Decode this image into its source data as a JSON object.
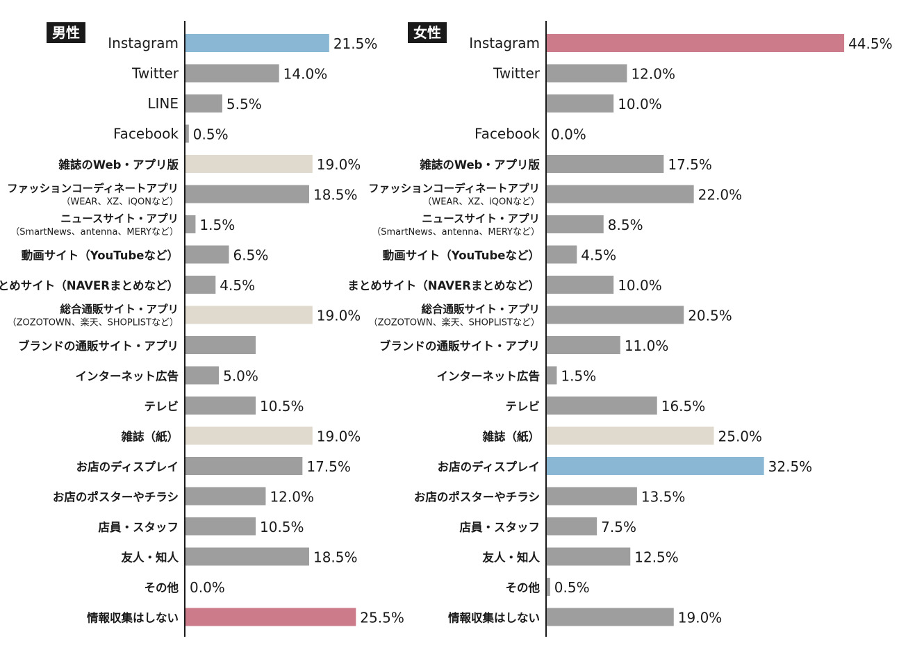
{
  "chart_data": [
    {
      "type": "bar",
      "orientation": "horizontal",
      "title": "男性",
      "categories": [
        {
          "line1": "Instagram",
          "line2": ""
        },
        {
          "line1": "Twitter",
          "line2": ""
        },
        {
          "line1": "LINE",
          "line2": ""
        },
        {
          "line1": "Facebook",
          "line2": ""
        },
        {
          "line1": "雑誌のWeb・アプリ版",
          "line2": ""
        },
        {
          "line1": "ファッションコーディネートアプリ",
          "line2": "（WEAR、XZ、iQONなど）"
        },
        {
          "line1": "ニュースサイト・アプリ",
          "line2": "（SmartNews、antenna、MERYなど）"
        },
        {
          "line1": "動画サイト（YouTubeなど）",
          "line2": ""
        },
        {
          "line1": "まとめサイト（NAVERまとめなど）",
          "line2": ""
        },
        {
          "line1": "総合通販サイト・アプリ",
          "line2": "（ZOZOTOWN、楽天、SHOPLISTなど）"
        },
        {
          "line1": "ブランドの通販サイト・アプリ",
          "line2": ""
        },
        {
          "line1": "インターネット広告",
          "line2": ""
        },
        {
          "line1": "テレビ",
          "line2": ""
        },
        {
          "line1": "雑誌（紙）",
          "line2": ""
        },
        {
          "line1": "お店のディスプレイ",
          "line2": ""
        },
        {
          "line1": "お店のポスターやチラシ",
          "line2": ""
        },
        {
          "line1": "店員・スタッフ",
          "line2": ""
        },
        {
          "line1": "友人・知人",
          "line2": ""
        },
        {
          "line1": "その他",
          "line2": ""
        },
        {
          "line1": "情報収集はしない",
          "line2": ""
        }
      ],
      "values": [
        21.5,
        14.0,
        5.5,
        0.5,
        19.0,
        18.5,
        1.5,
        6.5,
        4.5,
        19.0,
        10.5,
        5.0,
        10.5,
        19.0,
        17.5,
        12.0,
        10.5,
        18.5,
        0.0,
        25.5
      ],
      "value_labels": [
        "21.5%",
        "14.0%",
        "5.5%",
        "0.5%",
        "19.0%",
        "18.5%",
        "1.5%",
        "6.5%",
        "4.5%",
        "19.0%",
        "",
        "5.0%",
        "10.5%",
        "19.0%",
        "17.5%",
        "12.0%",
        "10.5%",
        "18.5%",
        "0.0%",
        "25.5%"
      ],
      "bar_colors": [
        "#8ab8d4",
        "#9e9e9e",
        "#9e9e9e",
        "#9e9e9e",
        "#e0d9ce",
        "#9e9e9e",
        "#9e9e9e",
        "#9e9e9e",
        "#9e9e9e",
        "#e0d9ce",
        "#9e9e9e",
        "#9e9e9e",
        "#9e9e9e",
        "#e0d9ce",
        "#9e9e9e",
        "#9e9e9e",
        "#9e9e9e",
        "#9e9e9e",
        "#9e9e9e",
        "#cc7b8a"
      ],
      "xlim": [
        0,
        50
      ],
      "grid": false,
      "legend": "none"
    },
    {
      "type": "bar",
      "orientation": "horizontal",
      "title": "女性",
      "categories": [
        {
          "line1": "Instagram",
          "line2": ""
        },
        {
          "line1": "Twitter",
          "line2": ""
        },
        {
          "line1": "",
          "line2": ""
        },
        {
          "line1": "Facebook",
          "line2": ""
        },
        {
          "line1": "雑誌のWeb・アプリ版",
          "line2": ""
        },
        {
          "line1": "ファッションコーディネートアプリ",
          "line2": "（WEAR、XZ、iQONなど）"
        },
        {
          "line1": "ニュースサイト・アプリ",
          "line2": "（SmartNews、antenna、MERYなど）"
        },
        {
          "line1": "動画サイト（YouTubeなど）",
          "line2": ""
        },
        {
          "line1": "まとめサイト（NAVERまとめなど）",
          "line2": ""
        },
        {
          "line1": "総合通販サイト・アプリ",
          "line2": "（ZOZOTOWN、楽天、SHOPLISTなど）"
        },
        {
          "line1": "ブランドの通販サイト・アプリ",
          "line2": ""
        },
        {
          "line1": "インターネット広告",
          "line2": ""
        },
        {
          "line1": "テレビ",
          "line2": ""
        },
        {
          "line1": "雑誌（紙）",
          "line2": ""
        },
        {
          "line1": "お店のディスプレイ",
          "line2": ""
        },
        {
          "line1": "お店のポスターやチラシ",
          "line2": ""
        },
        {
          "line1": "店員・スタッフ",
          "line2": ""
        },
        {
          "line1": "友人・知人",
          "line2": ""
        },
        {
          "line1": "その他",
          "line2": ""
        },
        {
          "line1": "情報収集はしない",
          "line2": ""
        }
      ],
      "values": [
        44.5,
        12.0,
        10.0,
        0.0,
        17.5,
        22.0,
        8.5,
        4.5,
        10.0,
        20.5,
        11.0,
        1.5,
        16.5,
        25.0,
        32.5,
        13.5,
        7.5,
        12.5,
        0.5,
        19.0
      ],
      "value_labels": [
        "44.5%",
        "12.0%",
        "10.0%",
        "0.0%",
        "17.5%",
        "22.0%",
        "8.5%",
        "4.5%",
        "10.0%",
        "20.5%",
        "11.0%",
        "1.5%",
        "16.5%",
        "25.0%",
        "32.5%",
        "13.5%",
        "7.5%",
        "12.5%",
        "0.5%",
        "19.0%"
      ],
      "bar_colors": [
        "#cc7b8a",
        "#9e9e9e",
        "#9e9e9e",
        "#9e9e9e",
        "#9e9e9e",
        "#9e9e9e",
        "#9e9e9e",
        "#9e9e9e",
        "#9e9e9e",
        "#9e9e9e",
        "#9e9e9e",
        "#9e9e9e",
        "#9e9e9e",
        "#e0d9ce",
        "#8ab8d4",
        "#9e9e9e",
        "#9e9e9e",
        "#9e9e9e",
        "#9e9e9e",
        "#9e9e9e"
      ],
      "xlim": [
        0,
        50
      ],
      "grid": false,
      "legend": "none"
    }
  ]
}
